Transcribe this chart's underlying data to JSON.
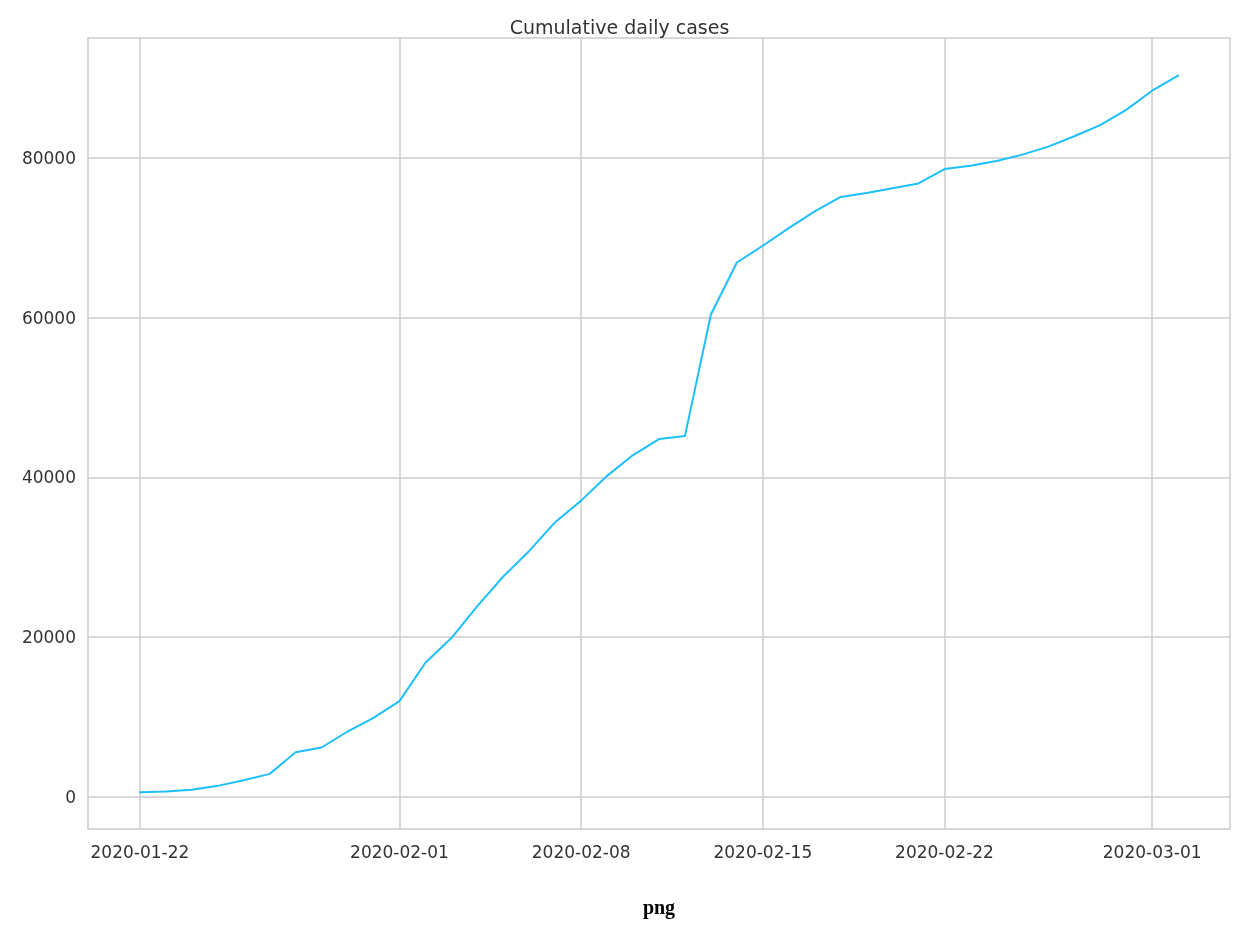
{
  "chart_data": {
    "type": "line",
    "title": "Cumulative daily cases",
    "xlabel": "png",
    "x": [
      "2020-01-22",
      "2020-01-23",
      "2020-01-24",
      "2020-01-25",
      "2020-01-26",
      "2020-01-27",
      "2020-01-28",
      "2020-01-29",
      "2020-01-30",
      "2020-01-31",
      "2020-02-01",
      "2020-02-02",
      "2020-02-03",
      "2020-02-04",
      "2020-02-05",
      "2020-02-06",
      "2020-02-07",
      "2020-02-08",
      "2020-02-09",
      "2020-02-10",
      "2020-02-11",
      "2020-02-12",
      "2020-02-13",
      "2020-02-14",
      "2020-02-15",
      "2020-02-16",
      "2020-02-17",
      "2020-02-18",
      "2020-02-19",
      "2020-02-20",
      "2020-02-21",
      "2020-02-22",
      "2020-02-23",
      "2020-02-24",
      "2020-02-25",
      "2020-02-26",
      "2020-02-27",
      "2020-02-28",
      "2020-02-29",
      "2020-03-01",
      "2020-03-02"
    ],
    "series": [
      {
        "color": "#1ebfff",
        "values": [
          600,
          700,
          900,
          1400,
          2100,
          2900,
          5600,
          6200,
          8200,
          9900,
          12000,
          16800,
          19900,
          23900,
          27600,
          30800,
          34400,
          37100,
          40200,
          42800,
          44800,
          45200,
          60400,
          66900,
          69000,
          71200,
          73300,
          75100,
          75600,
          76200,
          76800,
          78600,
          79000,
          79600,
          80400,
          81400,
          82700,
          84100,
          86000,
          88400,
          90300
        ]
      }
    ],
    "xlim": [
      "2020-01-20",
      "2020-03-04"
    ],
    "xticks": [
      "2020-01-22",
      "2020-02-01",
      "2020-02-08",
      "2020-02-15",
      "2020-02-22",
      "2020-03-01"
    ],
    "ylim": [
      -4000,
      95000
    ],
    "yticks": [
      0,
      20000,
      40000,
      60000,
      80000
    ],
    "grid": true,
    "marker": "none",
    "line_style": "solid"
  }
}
